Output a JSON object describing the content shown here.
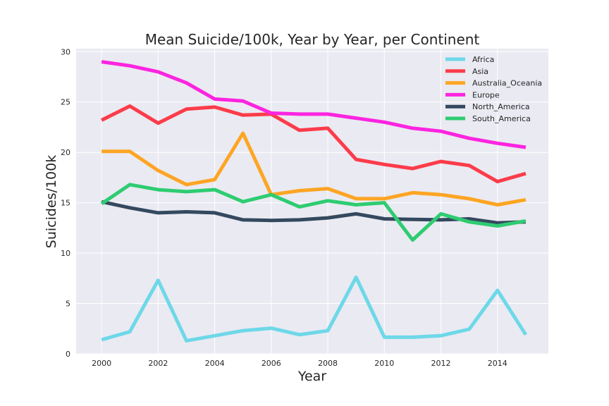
{
  "chart_data": {
    "type": "line",
    "title": "Mean Suicide/100k, Year by Year, per Continent",
    "xlabel": "Year",
    "ylabel": "Suicides/100k",
    "xlim": [
      1999.1,
      2015.8
    ],
    "ylim": [
      0,
      30.3
    ],
    "xticks": [
      "2000",
      "2002",
      "2004",
      "2006",
      "2008",
      "2010",
      "2012",
      "2014"
    ],
    "yticks": [
      "0",
      "5",
      "10",
      "15",
      "20",
      "25",
      "30"
    ],
    "grid": true,
    "legend_position": "top-right",
    "x": [
      2000,
      2001,
      2002,
      2003,
      2004,
      2005,
      2006,
      2007,
      2008,
      2009,
      2010,
      2011,
      2012,
      2013,
      2014,
      2015
    ],
    "series": [
      {
        "name": "Africa",
        "color": "#6dd8e8",
        "values": [
          1.4,
          2.2,
          7.3,
          1.3,
          1.8,
          2.3,
          2.55,
          1.9,
          2.3,
          7.6,
          1.65,
          1.65,
          1.8,
          2.45,
          6.3,
          1.9
        ]
      },
      {
        "name": "Asia",
        "color": "#fc3c4a",
        "values": [
          23.2,
          24.6,
          22.9,
          24.3,
          24.5,
          23.7,
          23.8,
          22.2,
          22.4,
          19.3,
          18.8,
          18.4,
          19.1,
          18.7,
          17.1,
          17.9
        ]
      },
      {
        "name": "Australia_Oceania",
        "color": "#fda523",
        "values": [
          20.1,
          20.1,
          18.2,
          16.8,
          17.3,
          21.9,
          15.8,
          16.2,
          16.4,
          15.4,
          15.4,
          16.0,
          15.8,
          15.4,
          14.8,
          15.3
        ]
      },
      {
        "name": "Europe",
        "color": "#fc24e0",
        "values": [
          29.0,
          28.6,
          28.0,
          26.9,
          25.3,
          25.1,
          23.9,
          23.8,
          23.8,
          23.4,
          23.0,
          22.4,
          22.1,
          21.4,
          20.9,
          20.5
        ]
      },
      {
        "name": "North_America",
        "color": "#34495e",
        "values": [
          15.1,
          14.5,
          14.0,
          14.1,
          14.0,
          13.3,
          13.25,
          13.3,
          13.5,
          13.9,
          13.4,
          13.35,
          13.3,
          13.4,
          13.0,
          13.1
        ]
      },
      {
        "name": "South_America",
        "color": "#2ecc71",
        "values": [
          14.9,
          16.8,
          16.3,
          16.1,
          16.3,
          15.1,
          15.8,
          14.6,
          15.2,
          14.8,
          15.0,
          11.3,
          13.9,
          13.1,
          12.7,
          13.2
        ]
      }
    ]
  }
}
